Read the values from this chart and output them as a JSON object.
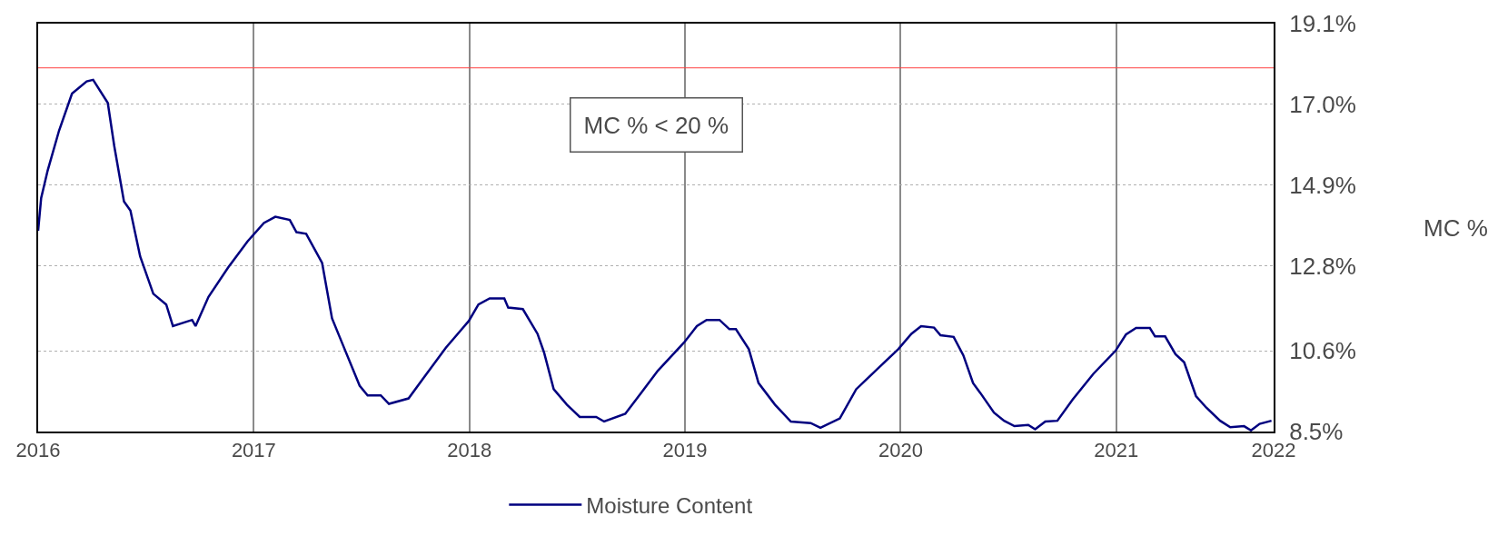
{
  "chart_data": {
    "type": "line",
    "ylabel": "MC %",
    "annotations": [
      "MC % < 20 %"
    ],
    "xlim": [
      2016.0,
      2021.73
    ],
    "xticks": [
      2016,
      2017,
      2018,
      2019,
      2020,
      2021,
      {
        "value": 2021.73,
        "label": "2022"
      }
    ],
    "ylim": [
      8.5,
      19.1
    ],
    "yticks": [
      {
        "value": 8.5,
        "label": "8.5%"
      },
      {
        "value": 10.6,
        "label": "10.6%"
      },
      {
        "value": 12.8,
        "label": "12.8%"
      },
      {
        "value": 14.9,
        "label": "14.9%"
      },
      {
        "value": 17.0,
        "label": "17.0%"
      },
      {
        "value": 19.1,
        "label": "19.1%"
      }
    ],
    "grid": true,
    "legend": "bottom",
    "marker": "none",
    "line_style": "solid",
    "ref_lines": [
      {
        "axis": "y",
        "value": 17.95,
        "color": "#ff4040"
      }
    ],
    "series": [
      {
        "name": "Moisture Content",
        "color": "#00007f",
        "x": [
          2016.0,
          2016.014,
          2016.044,
          2016.097,
          2016.157,
          2016.225,
          2016.255,
          2016.323,
          2016.353,
          2016.398,
          2016.428,
          2016.473,
          2016.534,
          2016.594,
          2016.625,
          2016.714,
          2016.73,
          2016.79,
          2016.881,
          2016.971,
          2017.047,
          2017.1,
          2017.167,
          2017.198,
          2017.243,
          2017.317,
          2017.363,
          2017.409,
          2017.491,
          2017.528,
          2017.589,
          2017.627,
          2017.718,
          2017.786,
          2017.891,
          2017.997,
          2018.042,
          2018.094,
          2018.162,
          2018.18,
          2018.248,
          2018.316,
          2018.346,
          2018.391,
          2018.452,
          2018.512,
          2018.588,
          2018.625,
          2018.723,
          2018.799,
          2018.874,
          2018.995,
          2019.055,
          2019.1,
          2019.16,
          2019.206,
          2019.236,
          2019.296,
          2019.341,
          2019.417,
          2019.491,
          2019.583,
          2019.628,
          2019.718,
          2019.794,
          2019.899,
          2019.989,
          2020.05,
          2020.095,
          2020.155,
          2020.185,
          2020.246,
          2020.291,
          2020.336,
          2020.37,
          2020.433,
          2020.48,
          2020.528,
          2020.592,
          2020.624,
          2020.671,
          2020.727,
          2020.798,
          2020.894,
          2020.997,
          2021.045,
          2021.092,
          2021.156,
          2021.18,
          2021.227,
          2021.275,
          2021.315,
          2021.37,
          2021.418,
          2021.482,
          2021.529,
          2021.593,
          2021.625,
          2021.665,
          2021.72
        ],
        "values": [
          13.72,
          14.57,
          15.28,
          16.32,
          17.28,
          17.6,
          17.64,
          17.04,
          15.92,
          14.48,
          14.24,
          13.05,
          12.08,
          11.8,
          11.24,
          11.4,
          11.24,
          12.0,
          12.76,
          13.44,
          13.92,
          14.08,
          14.0,
          13.68,
          13.64,
          12.88,
          11.44,
          10.81,
          9.69,
          9.44,
          9.44,
          9.22,
          9.36,
          9.88,
          10.68,
          11.37,
          11.8,
          11.96,
          11.96,
          11.72,
          11.68,
          11.04,
          10.56,
          9.6,
          9.2,
          8.88,
          8.88,
          8.76,
          8.96,
          9.52,
          10.08,
          10.81,
          11.24,
          11.4,
          11.4,
          11.16,
          11.16,
          10.64,
          9.76,
          9.2,
          8.76,
          8.72,
          8.6,
          8.84,
          9.6,
          10.16,
          10.64,
          11.04,
          11.24,
          11.2,
          11.0,
          10.96,
          10.48,
          9.76,
          9.5,
          8.99,
          8.78,
          8.64,
          8.67,
          8.56,
          8.76,
          8.78,
          9.33,
          10.0,
          10.6,
          11.02,
          11.19,
          11.19,
          10.97,
          10.97,
          10.51,
          10.3,
          9.42,
          9.12,
          8.78,
          8.61,
          8.64,
          8.53,
          8.7,
          8.78
        ]
      }
    ]
  }
}
